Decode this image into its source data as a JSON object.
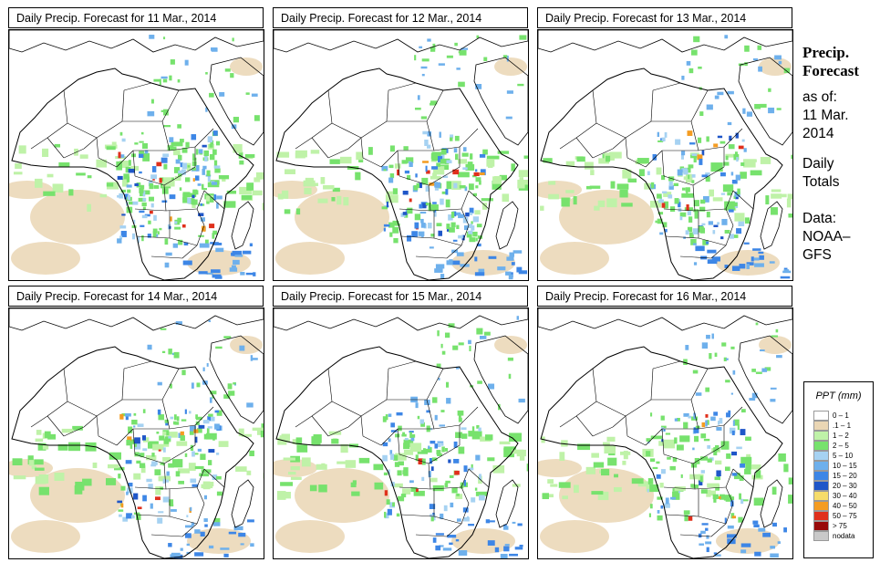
{
  "panels": [
    {
      "title": "Daily Precip. Forecast for  11 Mar., 2014",
      "intensity": 1.0,
      "seed": 11,
      "shift": 0.0
    },
    {
      "title": "Daily Precip. Forecast for  12 Mar., 2014",
      "intensity": 0.85,
      "seed": 12,
      "shift": 0.3
    },
    {
      "title": "Daily Precip. Forecast for  13 Mar., 2014",
      "intensity": 0.7,
      "seed": 13,
      "shift": 0.5
    },
    {
      "title": "Daily Precip. Forecast for  14 Mar., 2014",
      "intensity": 0.75,
      "seed": 14,
      "shift": 0.2
    },
    {
      "title": "Daily Precip. Forecast for  15 Mar., 2014",
      "intensity": 0.65,
      "seed": 15,
      "shift": 0.6
    },
    {
      "title": "Daily Precip. Forecast for  16 Mar., 2014",
      "intensity": 0.6,
      "seed": 16,
      "shift": 0.8
    }
  ],
  "side": {
    "title_line1": "Precip.",
    "title_line2": "Forecast",
    "asof_label": "as of:",
    "asof_date1": "11 Mar.",
    "asof_date2": "2014",
    "totals1": "Daily",
    "totals2": "Totals",
    "data1": "Data:",
    "data2": "NOAA–",
    "data3": "GFS"
  },
  "legend": {
    "title": "PPT (mm)",
    "items": [
      {
        "label": "0 – 1",
        "color": "#ffffff"
      },
      {
        "label": ".1 – 1",
        "color": "#ead6b4"
      },
      {
        "label": "1 – 2",
        "color": "#bff2a8"
      },
      {
        "label": "2 – 5",
        "color": "#77e26d"
      },
      {
        "label": "5 – 10",
        "color": "#a6d2f2"
      },
      {
        "label": "10 – 15",
        "color": "#6eb0ec"
      },
      {
        "label": "15 – 20",
        "color": "#3d86e6"
      },
      {
        "label": "20 – 30",
        "color": "#1f56c8"
      },
      {
        "label": "30 – 40",
        "color": "#f6dc6a"
      },
      {
        "label": "40 – 50",
        "color": "#f49c22"
      },
      {
        "label": "50 – 75",
        "color": "#e0301c"
      },
      {
        "label": "> 75",
        "color": "#980a0a"
      },
      {
        "label": "nodata",
        "color": "#c9c9c9"
      }
    ]
  }
}
